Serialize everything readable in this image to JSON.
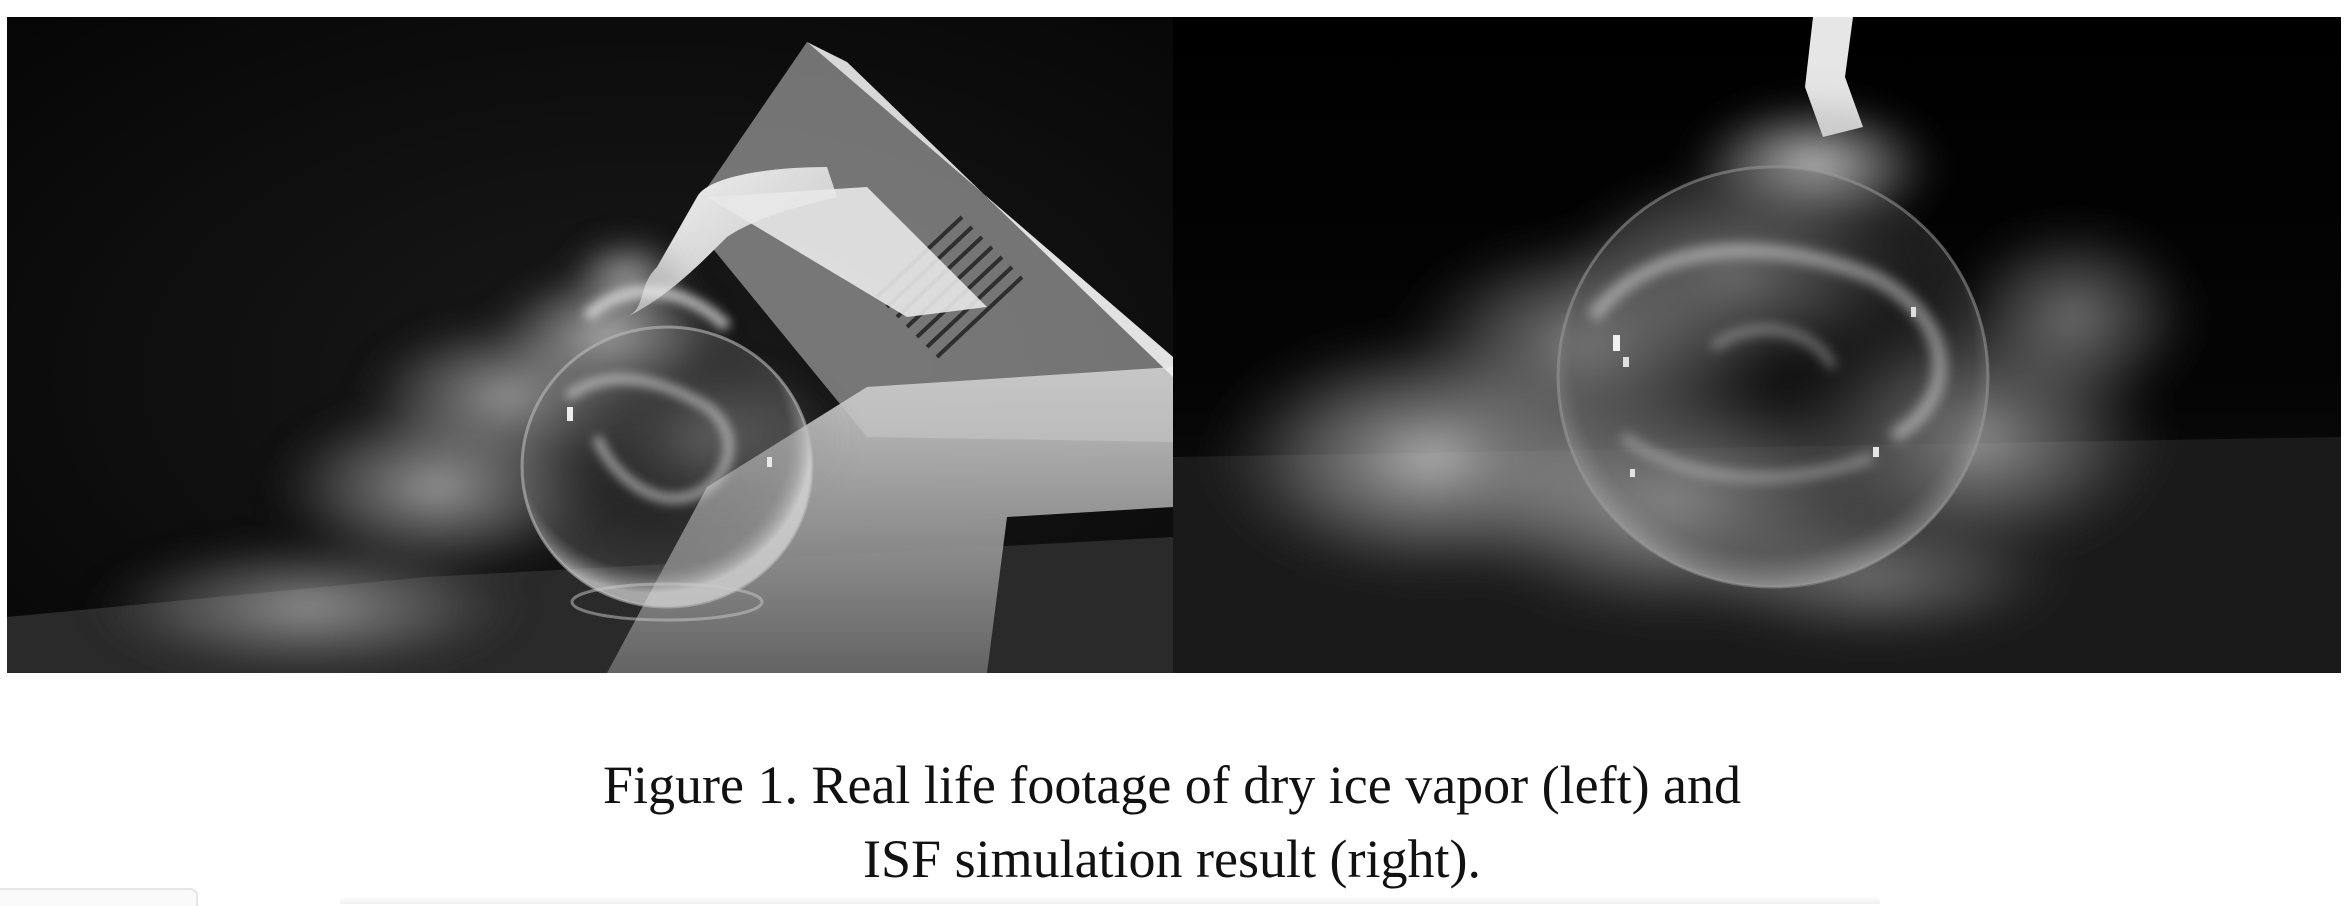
{
  "figure": {
    "panels": [
      {
        "content": "real-life-footage",
        "position": "left"
      },
      {
        "content": "simulation-result",
        "position": "right"
      }
    ],
    "caption": {
      "line1": "Figure 1. Real life footage of dry ice vapor (left) and",
      "line2": "ISF simulation result (right)."
    }
  }
}
